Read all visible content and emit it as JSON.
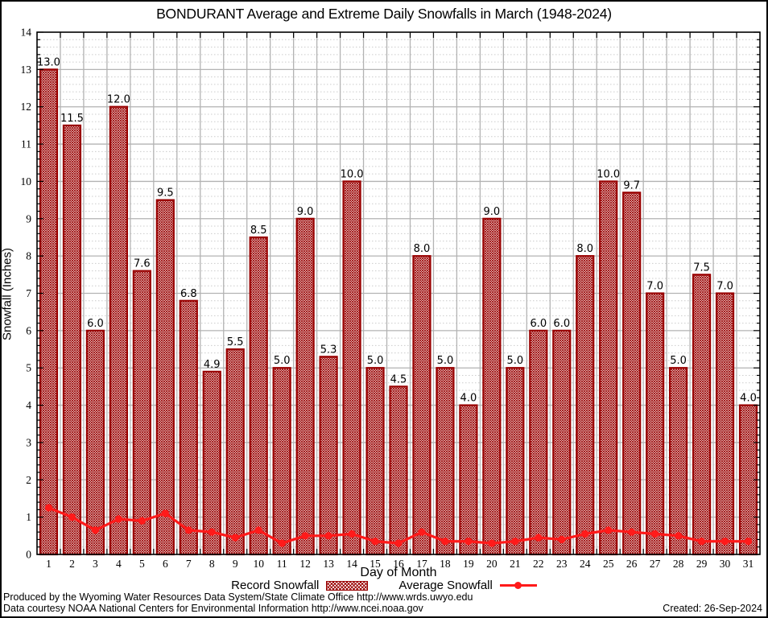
{
  "legend": {
    "record_label": "Record Snowfall",
    "average_label": "Average Snowfall"
  },
  "footer": {
    "line1": "Produced by the Wyoming Water Resources Data System/State Climate Office http://www.wrds.uwyo.edu",
    "line2": "Data courtesy NOAA National Centers for Environmental Information http://www.ncei.noaa.gov",
    "created": "Created: 26-Sep-2024"
  },
  "colors": {
    "bar": "#990000",
    "line": "#ff1a1a",
    "grid_major": "#b3b3b3",
    "grid_minor": "#cccccc",
    "frame": "#000000"
  },
  "chart_data": {
    "type": "bar",
    "title": "BONDURANT Average and Extreme Daily Snowfalls in March (1948-2024)",
    "xlabel": "Day of Month",
    "ylabel": "Snowfall (Inches)",
    "ylim": [
      0,
      14
    ],
    "y_major_step": 1,
    "y_minor_step": 0.2,
    "grid": true,
    "legend_position": "bottom",
    "categories": [
      1,
      2,
      3,
      4,
      5,
      6,
      7,
      8,
      9,
      10,
      11,
      12,
      13,
      14,
      15,
      16,
      17,
      18,
      19,
      20,
      21,
      22,
      23,
      24,
      25,
      26,
      27,
      28,
      29,
      30,
      31
    ],
    "series": [
      {
        "name": "Record Snowfall",
        "type": "bar",
        "values": [
          13.0,
          11.5,
          6.0,
          12.0,
          7.6,
          9.5,
          6.8,
          4.9,
          5.5,
          8.5,
          5.0,
          9.0,
          5.3,
          10.0,
          5.0,
          4.5,
          8.0,
          5.0,
          4.0,
          9.0,
          5.0,
          6.0,
          6.0,
          8.0,
          10.0,
          9.7,
          7.0,
          5.0,
          7.5,
          7.0,
          4.0
        ],
        "labels": [
          "13.0",
          "11.5",
          "6.0",
          "12.0",
          "7.6",
          "9.5",
          "6.8",
          "4.9",
          "5.5",
          "8.5",
          "5.0",
          "9.0",
          "5.3",
          "10.0",
          "5.0",
          "4.5",
          "8.0",
          "5.0",
          "4.0",
          "9.0",
          "5.0",
          "6.0",
          "6.0",
          "8.0",
          "10.0",
          "9.7",
          "7.0",
          "5.0",
          "7.5",
          "7.0",
          "4.0"
        ]
      },
      {
        "name": "Average Snowfall",
        "type": "line",
        "values": [
          1.25,
          1.0,
          0.65,
          0.95,
          0.9,
          1.1,
          0.65,
          0.6,
          0.45,
          0.65,
          0.3,
          0.5,
          0.5,
          0.55,
          0.35,
          0.3,
          0.6,
          0.35,
          0.35,
          0.3,
          0.35,
          0.45,
          0.4,
          0.55,
          0.65,
          0.6,
          0.55,
          0.5,
          0.35,
          0.35,
          0.35
        ]
      }
    ]
  }
}
